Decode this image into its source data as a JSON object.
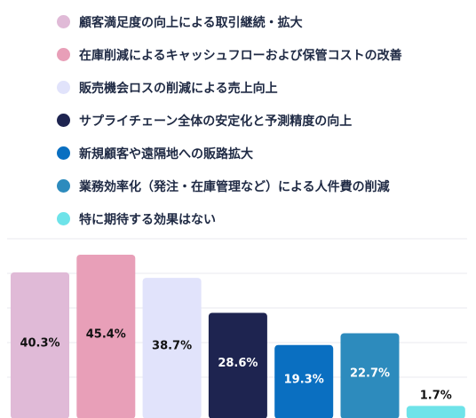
{
  "chart_data": {
    "type": "bar",
    "categories": [
      "顧客満足度の向上による取引継続・拡大",
      "在庫削減によるキャッシュフローおよび保管コストの改善",
      "販売機会ロスの削減による売上向上",
      "サプライチェーン全体の安定化と予測精度の向上",
      "新規顧客や遠隔地への販路拡大",
      "業務効率化（発注・在庫管理など）による人件費の削減",
      "特に期待する効果はない"
    ],
    "values": [
      40.3,
      45.4,
      38.7,
      28.6,
      19.3,
      22.7,
      1.7
    ],
    "value_labels": [
      "40.3%",
      "45.4%",
      "38.7%",
      "28.6%",
      "19.3%",
      "22.7%",
      "1.7%"
    ],
    "colors": [
      "#e0bad7",
      "#e89fb8",
      "#e1e3fb",
      "#1e2450",
      "#0a6fc1",
      "#2d8bbd",
      "#6ee3e9"
    ],
    "label_colors": [
      "#111111",
      "#111111",
      "#111111",
      "#ffffff",
      "#ffffff",
      "#ffffff",
      "#111111"
    ],
    "ylim": [
      0,
      50
    ],
    "grid": true,
    "legend_position": "top-left"
  }
}
